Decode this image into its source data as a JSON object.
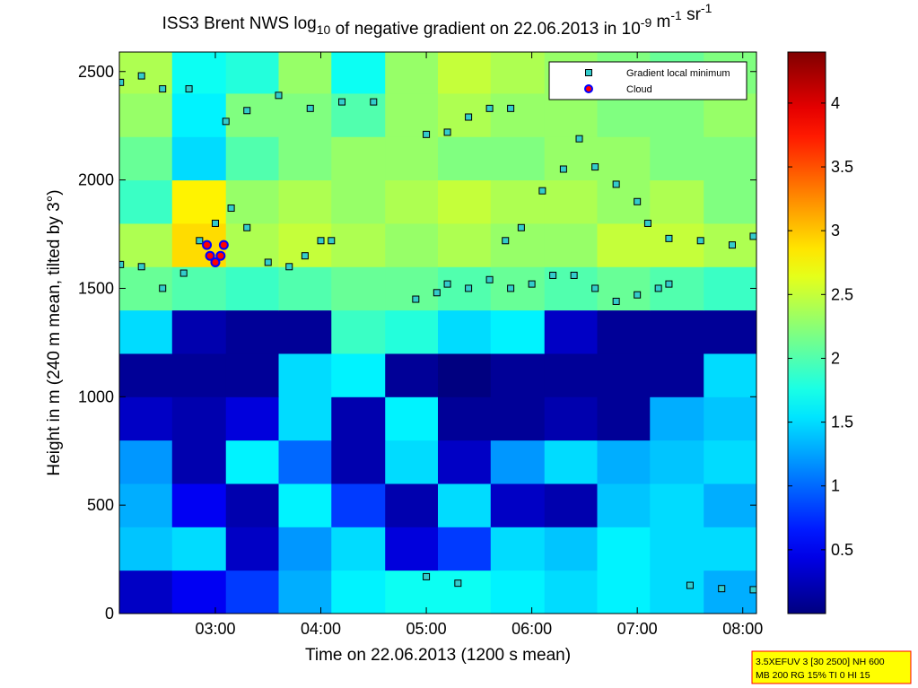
{
  "chart_data": {
    "type": "heatmap",
    "title": [
      {
        "text": "ISS3 Brent NWS log"
      },
      {
        "text": "10",
        "script": "sub"
      },
      {
        "text": " of negative gradient on 22.06.2013 in 10"
      },
      {
        "text": "-9",
        "script": "super"
      },
      {
        "text": " m"
      },
      {
        "text": "-1",
        "script": "super"
      },
      {
        "text": " sr"
      },
      {
        "text": "-1",
        "script": "super"
      }
    ],
    "xlabel": "Time on 22.06.2013 (1200 s mean)",
    "ylabel": "Height in m (240 m mean, tilted by 3°)",
    "xlim": [
      2.09,
      8.13
    ],
    "ylim": [
      0,
      2590
    ],
    "xticks": [
      {
        "value": 3,
        "label": "03:00"
      },
      {
        "value": 4,
        "label": "04:00"
      },
      {
        "value": 5,
        "label": "05:00"
      },
      {
        "value": 6,
        "label": "06:00"
      },
      {
        "value": 7,
        "label": "07:00"
      },
      {
        "value": 8,
        "label": "08:00"
      }
    ],
    "yticks": [
      0,
      500,
      1000,
      1500,
      2000,
      2500
    ],
    "clim": [
      0,
      4.4
    ],
    "cticks": [
      0.5,
      1,
      1.5,
      2,
      2.5,
      3,
      3.5,
      4
    ],
    "colormap": "jet",
    "xbins": [
      2.09,
      2.59,
      3.1,
      3.6,
      4.1,
      4.61,
      5.11,
      5.61,
      6.12,
      6.62,
      7.12,
      7.63,
      8.13
    ],
    "ybins": [
      0,
      200,
      400,
      600,
      800,
      1000,
      1200,
      1400,
      1600,
      1800,
      2000,
      2200,
      2400,
      2590
    ],
    "z": [
      [
        0.3,
        0.5,
        0.8,
        1.3,
        1.6,
        1.7,
        1.7,
        1.6,
        1.5,
        1.6,
        1.5,
        1.3
      ],
      [
        1.4,
        1.5,
        0.3,
        1.2,
        1.5,
        0.4,
        0.8,
        1.5,
        1.4,
        1.6,
        1.5,
        1.5
      ],
      [
        1.3,
        0.5,
        0.2,
        1.6,
        0.8,
        0.2,
        1.5,
        0.3,
        0.2,
        1.4,
        1.5,
        1.3
      ],
      [
        1.2,
        0.2,
        1.6,
        1.0,
        0.2,
        1.5,
        0.3,
        1.2,
        1.5,
        1.3,
        1.4,
        1.5
      ],
      [
        0.3,
        0.2,
        0.4,
        1.5,
        0.2,
        1.6,
        0.1,
        0.1,
        0.2,
        0.1,
        1.3,
        1.4
      ],
      [
        0.1,
        0.1,
        0.1,
        1.5,
        1.6,
        0.1,
        0.0,
        0.1,
        0.1,
        0.1,
        0.1,
        1.5
      ],
      [
        1.5,
        0.2,
        0.1,
        0.1,
        1.9,
        1.8,
        1.5,
        1.6,
        0.3,
        0.1,
        0.1,
        0.1
      ],
      [
        2.1,
        2.0,
        1.9,
        2.0,
        2.1,
        2.1,
        2.0,
        2.1,
        2.0,
        2.1,
        2.0,
        1.9
      ],
      [
        2.4,
        2.9,
        2.4,
        2.5,
        2.4,
        2.3,
        2.4,
        2.3,
        2.3,
        2.5,
        2.5,
        2.4
      ],
      [
        1.9,
        2.8,
        2.3,
        2.4,
        2.3,
        2.4,
        2.5,
        2.4,
        2.4,
        2.3,
        2.4,
        2.2
      ],
      [
        2.1,
        1.5,
        2.0,
        2.2,
        2.3,
        2.3,
        2.2,
        2.2,
        2.3,
        2.3,
        2.2,
        2.2
      ],
      [
        2.3,
        1.6,
        2.2,
        2.2,
        2.0,
        2.3,
        2.4,
        2.3,
        2.3,
        2.2,
        2.2,
        2.3
      ],
      [
        2.4,
        1.7,
        1.8,
        2.3,
        1.7,
        2.3,
        2.5,
        2.4,
        2.3,
        2.2,
        2.1,
        2.2
      ]
    ],
    "series": [
      {
        "name": "Gradient local minimum",
        "color": "#33cccc",
        "marker": "square",
        "x": [
          2.1,
          2.3,
          2.5,
          2.7,
          2.85,
          3.0,
          3.15,
          3.3,
          3.5,
          3.7,
          3.85,
          4.0,
          4.1,
          2.1,
          2.3,
          2.5,
          2.75,
          3.1,
          3.3,
          3.6,
          3.9,
          4.2,
          4.5,
          4.9,
          5.1,
          5.2,
          5.4,
          5.6,
          5.8,
          6.0,
          6.2,
          6.4,
          6.6,
          6.8,
          7.0,
          7.2,
          7.3,
          5.75,
          5.9,
          6.1,
          6.3,
          6.45,
          6.6,
          6.8,
          7.0,
          7.1,
          7.3,
          7.6,
          7.9,
          8.1,
          5.0,
          5.2,
          5.4,
          5.6,
          5.8,
          5.0,
          5.3,
          7.5,
          7.8,
          8.1
        ],
        "y": [
          1610,
          1600,
          1500,
          1570,
          1720,
          1800,
          1870,
          1780,
          1620,
          1600,
          1650,
          1720,
          1720,
          2450,
          2480,
          2420,
          2420,
          2270,
          2320,
          2390,
          2330,
          2360,
          2360,
          1450,
          1480,
          1520,
          1500,
          1540,
          1500,
          1520,
          1560,
          1560,
          1500,
          1440,
          1470,
          1500,
          1520,
          1720,
          1780,
          1950,
          2050,
          2190,
          2060,
          1980,
          1900,
          1800,
          1730,
          1720,
          1700,
          1740,
          2210,
          2220,
          2290,
          2330,
          2330,
          170,
          140,
          130,
          115,
          110
        ]
      },
      {
        "name": "Cloud",
        "color": "#ff0000",
        "edgecolor": "#0000ff",
        "marker": "circle",
        "x": [
          2.92,
          2.95,
          3.0,
          3.05,
          3.08
        ],
        "y": [
          1700,
          1650,
          1620,
          1650,
          1700
        ]
      }
    ],
    "legend": "upper right",
    "annotation": [
      "3.5XEFUV 3 [30 2500] NH 600",
      "MB 200 RG 15% TI 0 HI 15"
    ]
  }
}
